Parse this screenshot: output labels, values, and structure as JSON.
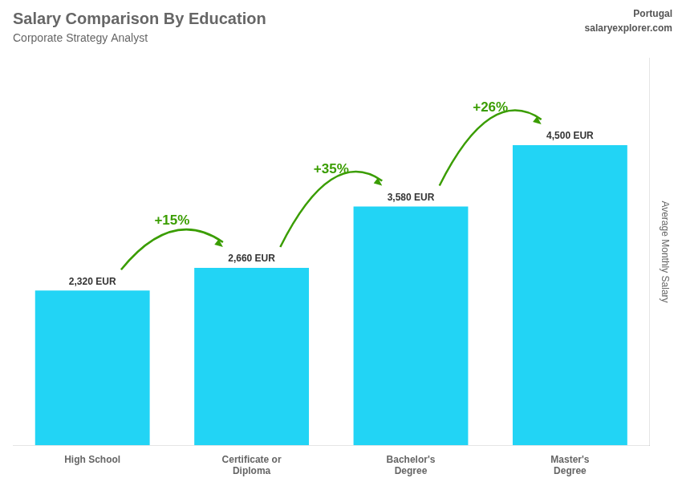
{
  "chart_data": {
    "type": "bar",
    "title": "Salary Comparison By Education",
    "subtitle": "Corporate Strategy Analyst",
    "ylabel": "Average Monthly Salary",
    "categories": [
      "High School",
      "Certificate or\nDiploma",
      "Bachelor's\nDegree",
      "Master's\nDegree"
    ],
    "values": [
      2320,
      2660,
      3580,
      4500
    ],
    "value_labels": [
      "2,320 EUR",
      "2,660 EUR",
      "3,580 EUR",
      "4,500 EUR"
    ],
    "data_labels": true,
    "color": "#22d4f5",
    "ylim": [
      0,
      5800
    ],
    "grid": false,
    "tick_labels": "x",
    "annotations": [
      {
        "text": "Portugal"
      },
      {
        "text": "salaryexplorer.com"
      },
      {
        "text": "+15%",
        "from": 0,
        "to": 1
      },
      {
        "text": "+35%",
        "from": 1,
        "to": 2
      },
      {
        "text": "+26%",
        "from": 2,
        "to": 3
      }
    ]
  }
}
